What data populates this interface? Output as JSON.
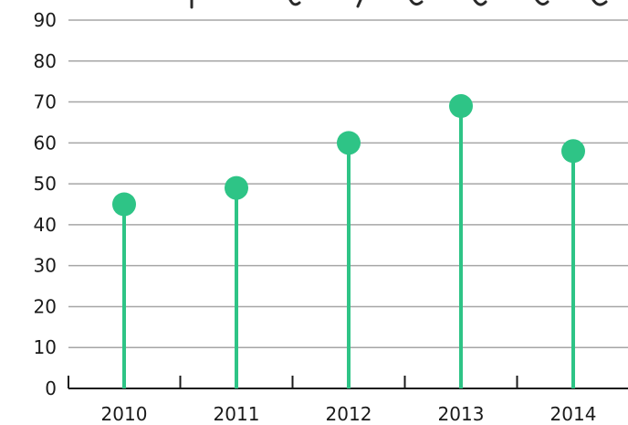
{
  "chart_data": {
    "type": "lollipop",
    "title": "",
    "xlabel": "",
    "ylabel": "",
    "categories": [
      "2010",
      "2011",
      "2012",
      "2013",
      "2014"
    ],
    "values": [
      45,
      49,
      60,
      69,
      58
    ],
    "ylim": [
      0,
      90
    ],
    "yticks": [
      "0",
      "10",
      "20",
      "30",
      "40",
      "50",
      "60",
      "70",
      "80",
      "90"
    ],
    "grid": true,
    "legend": "none",
    "colors": {
      "marker": "#2ec486",
      "grid": "#a6a6a6",
      "axis": "#1a1a1a",
      "text": "#1a1a1a"
    }
  }
}
